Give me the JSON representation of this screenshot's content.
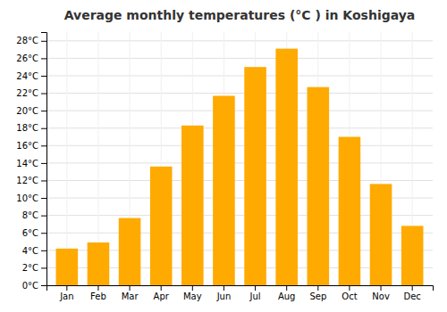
{
  "chart_data": {
    "type": "bar",
    "title": "Average monthly temperatures (°C ) in Koshigaya",
    "categories": [
      "Jan",
      "Feb",
      "Mar",
      "Apr",
      "May",
      "Jun",
      "Jul",
      "Aug",
      "Sep",
      "Oct",
      "Nov",
      "Dec"
    ],
    "values": [
      4.2,
      4.9,
      7.7,
      13.6,
      18.3,
      21.7,
      25.0,
      27.1,
      22.7,
      17.0,
      11.6,
      6.8
    ],
    "color": "#FFAA00",
    "ylim": [
      0,
      29
    ],
    "yticks": [
      {
        "value": 0,
        "label": "0°C"
      },
      {
        "value": 2,
        "label": "2°C"
      },
      {
        "value": 4,
        "label": "4°C"
      },
      {
        "value": 6,
        "label": "6°C"
      },
      {
        "value": 8,
        "label": "8°C"
      },
      {
        "value": 10,
        "label": "10°C"
      },
      {
        "value": 12,
        "label": "12°C"
      },
      {
        "value": 14,
        "label": "14°C"
      },
      {
        "value": 16,
        "label": "16°C"
      },
      {
        "value": 18,
        "label": "18°C"
      },
      {
        "value": 20,
        "label": "20°C"
      },
      {
        "value": 22,
        "label": "22°C"
      },
      {
        "value": 24,
        "label": "24°C"
      },
      {
        "value": 26,
        "label": "26°C"
      },
      {
        "value": 28,
        "label": "28°C"
      }
    ],
    "grid": true
  }
}
